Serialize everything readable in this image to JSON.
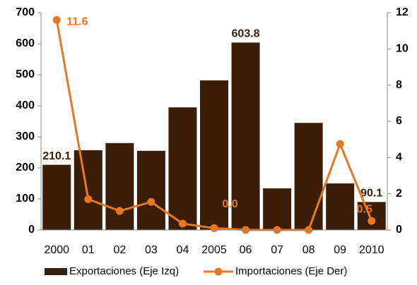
{
  "chart_data": {
    "type": "bar_line",
    "categories": [
      "2000",
      "01",
      "02",
      "03",
      "04",
      "2005",
      "06",
      "07",
      "08",
      "09",
      "2010"
    ],
    "series": [
      {
        "name": "Exportaciones (Eje Izq)",
        "type": "bar",
        "color": "#3b1e08",
        "axis": "y",
        "values": [
          210.1,
          257,
          280,
          255,
          395,
          482,
          603.8,
          134,
          345,
          150,
          90.1
        ],
        "value_labels": [
          "210.1",
          null,
          null,
          null,
          null,
          null,
          "603.8",
          null,
          null,
          null,
          "90.1"
        ]
      },
      {
        "name": "Importaciones (Eje Der)",
        "type": "line",
        "color": "#e87722",
        "axis": "y2",
        "values": [
          11.6,
          1.7,
          1.05,
          1.55,
          0.35,
          0.1,
          0,
          0,
          0,
          4.75,
          0.5
        ],
        "value_labels": [
          "11.6",
          null,
          null,
          null,
          null,
          null,
          "0.0",
          null,
          null,
          null,
          "0.5"
        ]
      }
    ],
    "ylim": [
      0,
      700
    ],
    "yticks": [
      0,
      100,
      200,
      300,
      400,
      500,
      600,
      700
    ],
    "y2lim": [
      0,
      12
    ],
    "y2ticks": [
      0,
      2,
      4,
      6,
      8,
      10,
      12
    ],
    "legend": "bottom"
  }
}
